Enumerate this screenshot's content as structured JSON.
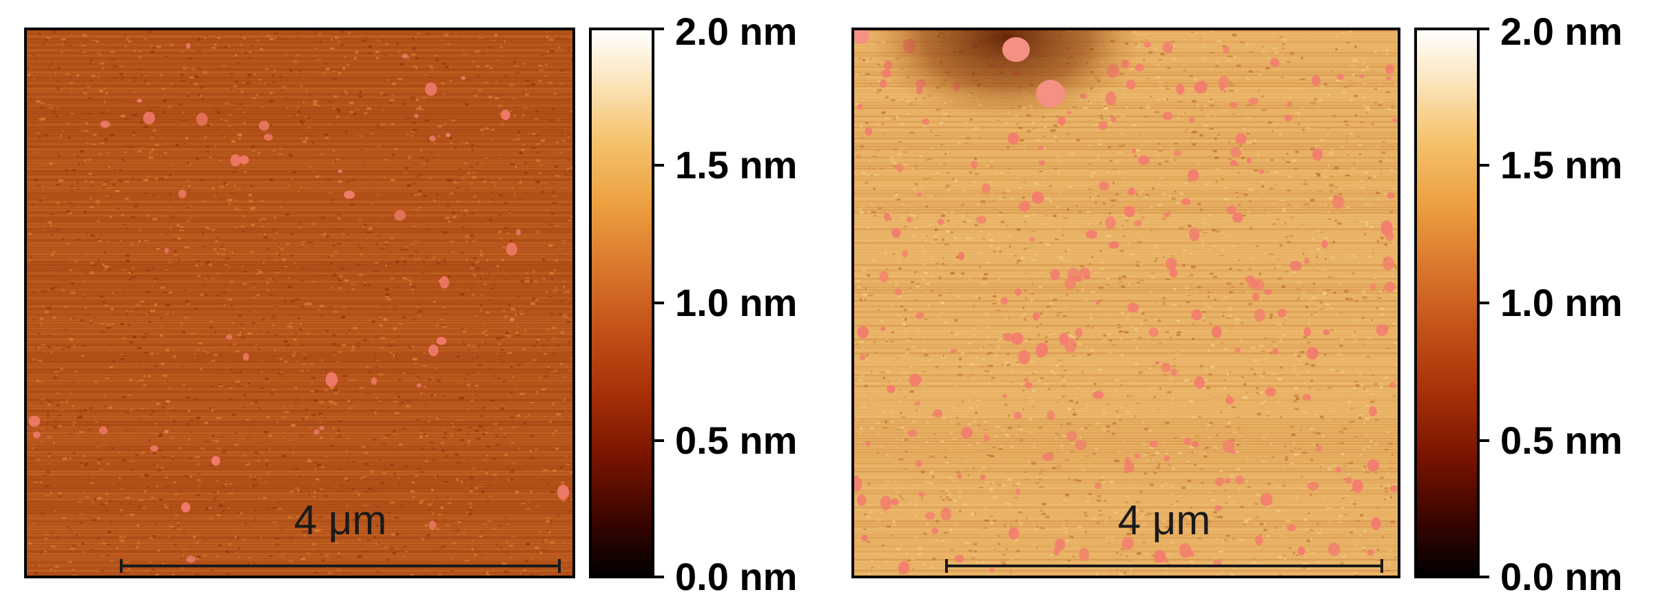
{
  "figure": {
    "left_panel": {
      "scale_label": "4 μm",
      "colors": {
        "base": "#b5521a",
        "dark": "#8a3208",
        "light": "#e08a3a",
        "particle": "#f07a6a"
      }
    },
    "right_panel": {
      "scale_label": "4 μm",
      "colors": {
        "base": "#e8b063",
        "dark": "#b86a28",
        "light": "#f6d08c",
        "particle": "#f37d6e"
      }
    },
    "colorbar": {
      "ticks": [
        "2.0 nm",
        "1.5 nm",
        "1.0 nm",
        "0.5 nm",
        "0.0 nm"
      ],
      "colors": [
        "#000000",
        "#7a1400",
        "#c4541a",
        "#eca040",
        "#ffffff"
      ]
    }
  }
}
